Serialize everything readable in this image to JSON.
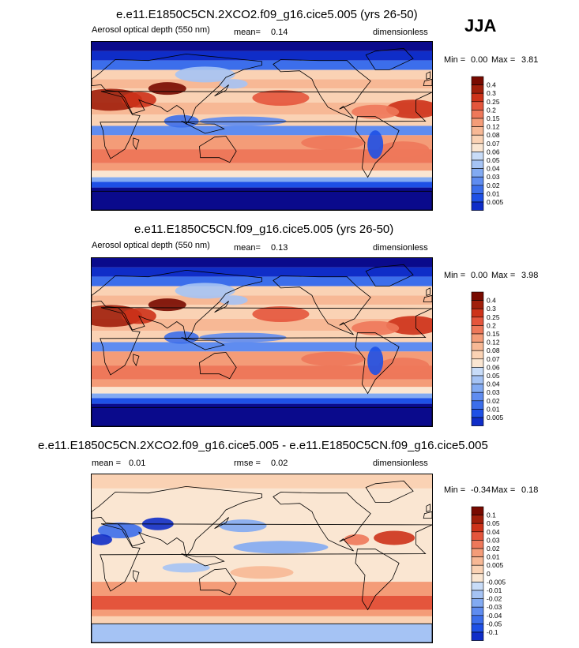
{
  "season": "JJA",
  "colors": {
    "seq": [
      "#0a0a8c",
      "#0f2dc8",
      "#1e50e6",
      "#3c6eeb",
      "#5f8cf0",
      "#82aaf2",
      "#a5c3f4",
      "#c8dcf8",
      "#fae6d2",
      "#fad2b4",
      "#f7b895",
      "#f49c78",
      "#ee785a",
      "#e4553c",
      "#cd3219",
      "#a01e0a",
      "#780a00"
    ],
    "ocean": "#f5ddc6"
  },
  "chart_data": [
    {
      "type": "heatmap",
      "title": "e.e11.E1850C5CN.2XCO2.f09_g16.cice5.005 (yrs 26-50)",
      "variable": "Aerosol optical depth (550 nm)",
      "mean_label": "mean=",
      "mean": "0.14",
      "units": "dimensionless",
      "min_label": "Min =",
      "min": "0.00",
      "max_label": "Max =",
      "max": "3.81",
      "levels": [
        "0.4",
        "0.3",
        "0.25",
        "0.2",
        "0.15",
        "0.12",
        "0.08",
        "0.07",
        "0.06",
        "0.05",
        "0.04",
        "0.03",
        "0.02",
        "0.01",
        "0.005"
      ]
    },
    {
      "type": "heatmap",
      "title": "e.e11.E1850C5CN.f09_g16.cice5.005 (yrs 26-50)",
      "variable": "Aerosol optical depth (550 nm)",
      "mean_label": "mean=",
      "mean": "0.13",
      "units": "dimensionless",
      "min_label": "Min =",
      "min": "0.00",
      "max_label": "Max =",
      "max": "3.98",
      "levels": [
        "0.4",
        "0.3",
        "0.25",
        "0.2",
        "0.15",
        "0.12",
        "0.08",
        "0.07",
        "0.06",
        "0.05",
        "0.04",
        "0.03",
        "0.02",
        "0.01",
        "0.005"
      ]
    },
    {
      "type": "heatmap",
      "title": "e.e11.E1850C5CN.2XCO2.f09_g16.cice5.005 - e.e11.E1850C5CN.f09_g16.cice5.005",
      "mean_label": "mean =",
      "mean": "0.01",
      "rmse_label": "rmse =",
      "rmse": "0.02",
      "units": "dimensionless",
      "min_label": "Min =",
      "min": "-0.34",
      "max_label": "Max =",
      "max": "0.18",
      "levels": [
        "0.1",
        "0.05",
        "0.04",
        "0.03",
        "0.02",
        "0.01",
        "0.005",
        "0",
        "-0.005",
        "-0.01",
        "-0.02",
        "-0.03",
        "-0.04",
        "-0.05",
        "-0.1"
      ]
    }
  ]
}
